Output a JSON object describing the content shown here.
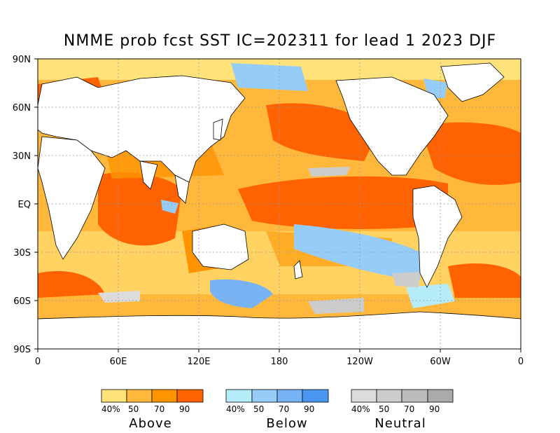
{
  "title": "NMME prob fcst SST IC=202311 for lead 1 2023 DJF",
  "y_ticks": [
    "90N",
    "60N",
    "30N",
    "EQ",
    "30S",
    "60S",
    "90S"
  ],
  "x_ticks": [
    "0",
    "60E",
    "120E",
    "180",
    "120W",
    "60W",
    "0"
  ],
  "legend": {
    "above": {
      "name": "Above",
      "labels": [
        "40%",
        "50",
        "70",
        "90"
      ],
      "colors": [
        "#ffe27a",
        "#ffb83c",
        "#ff9400",
        "#ff6200"
      ]
    },
    "below": {
      "name": "Below",
      "labels": [
        "40%",
        "50",
        "70",
        "90"
      ],
      "colors": [
        "#b4ecfa",
        "#96cdf8",
        "#78b4f5",
        "#4b96f0"
      ]
    },
    "neutral": {
      "name": "Neutral",
      "labels": [
        "40%",
        "50",
        "70",
        "90"
      ],
      "colors": [
        "#dcdcdc",
        "#cccccc",
        "#bcbcbc",
        "#aaaaaa"
      ]
    }
  }
}
